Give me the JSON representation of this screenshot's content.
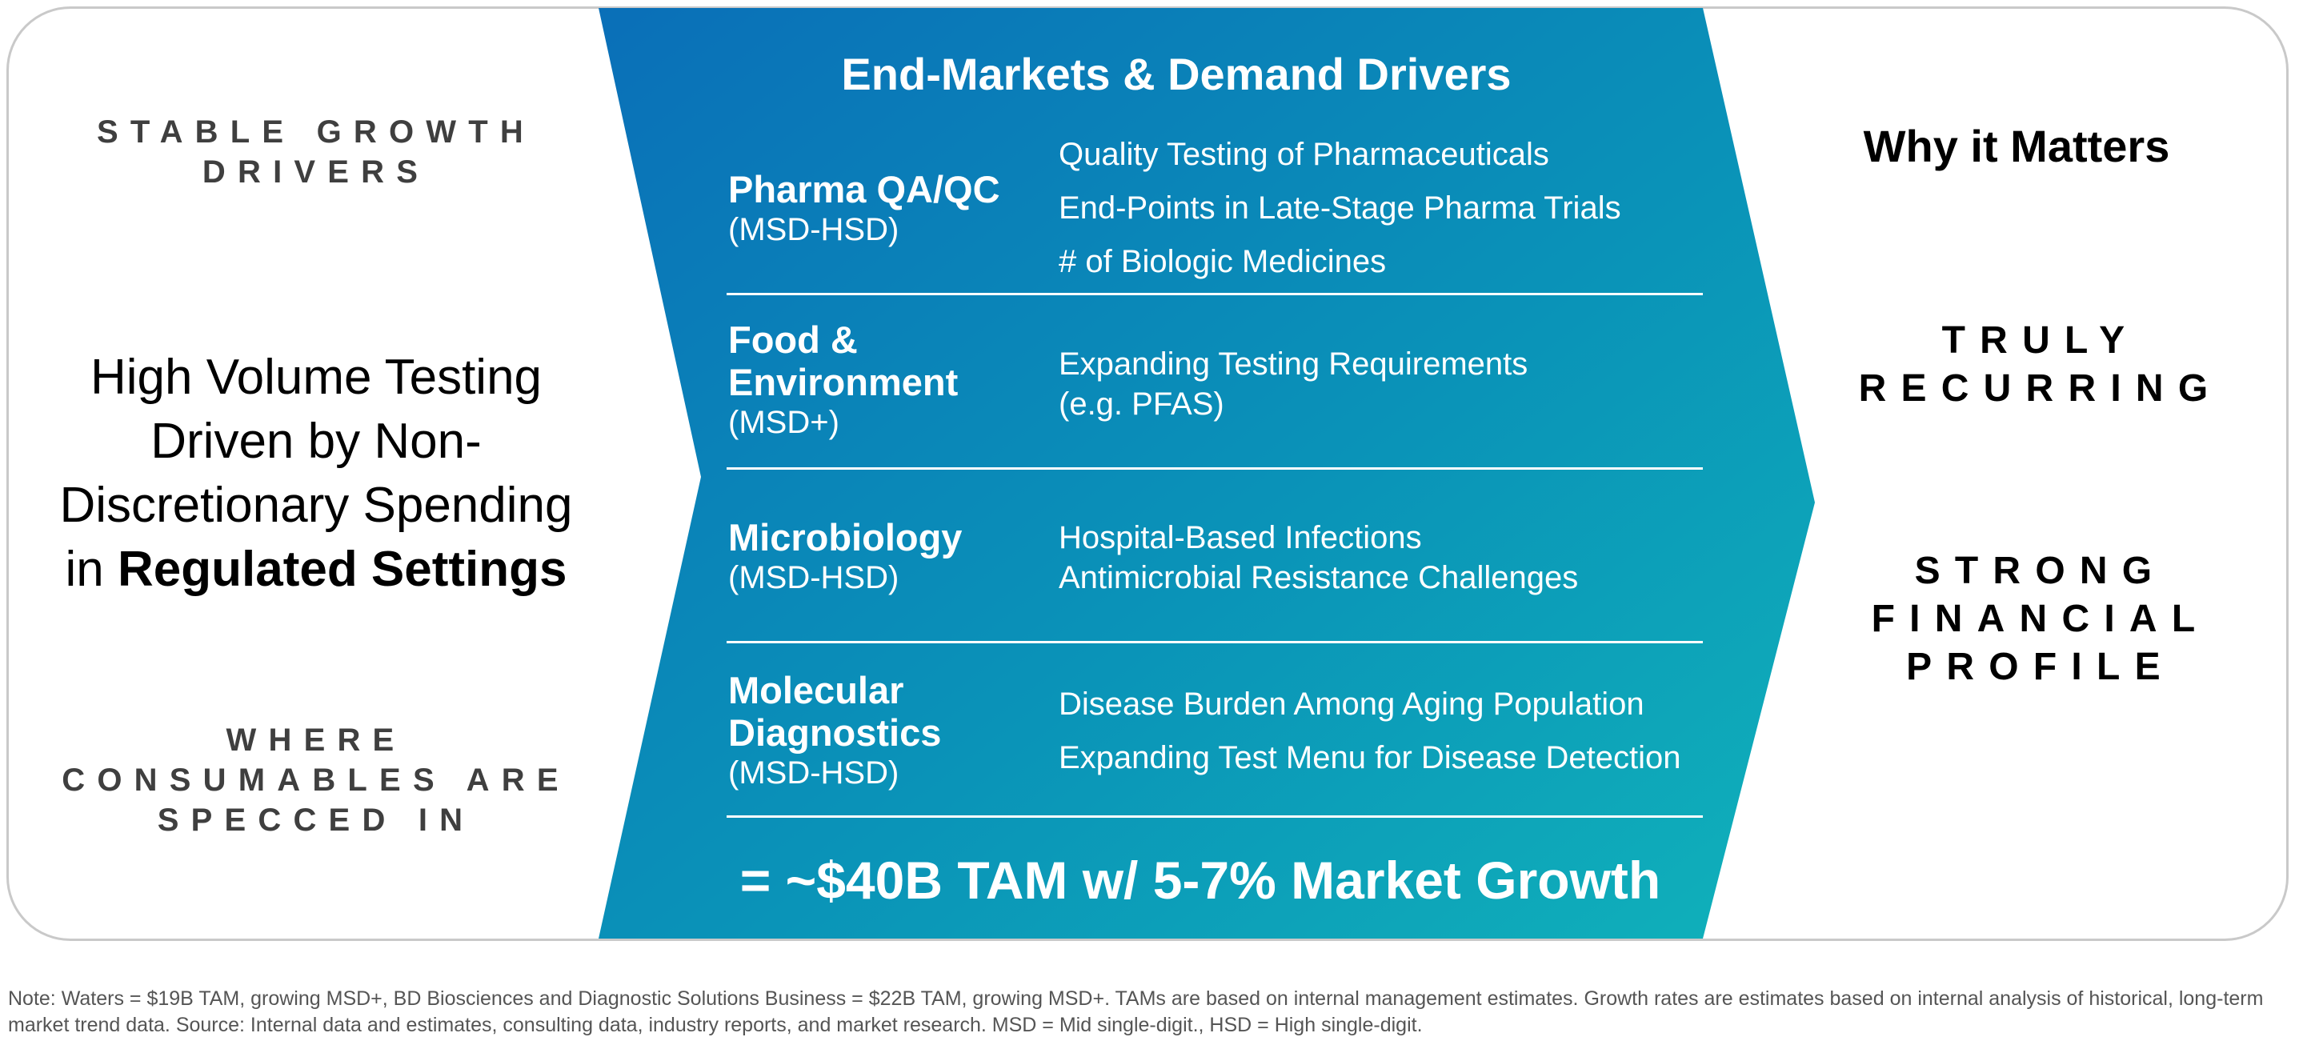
{
  "left": {
    "top_heading_lines": [
      "STABLE GROWTH",
      "DRIVERS"
    ],
    "main_text_lines": [
      "High Volume Testing",
      "Driven by Non-",
      "Discretionary Spending"
    ],
    "main_text_last_prefix": "in ",
    "main_text_last_bold": "Regulated Settings",
    "bottom_heading_lines": [
      "WHERE",
      "CONSUMABLES ARE",
      "SPECCED IN"
    ]
  },
  "center": {
    "title": "End-Markets & Demand Drivers",
    "categories": [
      {
        "name_lines": [
          "Pharma QA/QC"
        ],
        "growth": "(MSD-HSD)",
        "drivers": [
          "Quality Testing of Pharmaceuticals",
          "End-Points in Late-Stage Pharma Trials",
          "# of Biologic Medicines"
        ]
      },
      {
        "name_lines": [
          "Food &",
          "Environment"
        ],
        "growth": "(MSD+)",
        "drivers": [
          "Expanding Testing Requirements",
          "(e.g. PFAS)"
        ]
      },
      {
        "name_lines": [
          "Microbiology"
        ],
        "growth": "(MSD-HSD)",
        "drivers": [
          "Hospital-Based Infections",
          "Antimicrobial Resistance Challenges"
        ]
      },
      {
        "name_lines": [
          "Molecular",
          "Diagnostics"
        ],
        "growth": "(MSD-HSD)",
        "drivers": [
          "Disease Burden Among Aging Population",
          "Expanding Test Menu for Disease Detection"
        ]
      }
    ],
    "tam_summary": "=  ~$40B TAM w/ 5-7% Market Growth"
  },
  "right": {
    "title": "Why it Matters",
    "heading1_lines": [
      "TRULY",
      "RECURRING"
    ],
    "heading2_lines": [
      "STRONG",
      "FINANCIAL",
      "PROFILE"
    ]
  },
  "footnote_lines": [
    "Note: Waters = $19B TAM, growing MSD+, BD Biosciences and Diagnostic Solutions Business = $22B TAM, growing MSD+. TAMs are based on internal management estimates. Growth rates are estimates based on internal analysis of historical, long-term",
    "market trend data. Source: Internal data and estimates, consulting data, industry reports, and market research. MSD = Mid single-digit., HSD = High single-digit."
  ],
  "colors": {
    "panel_gradient_start": "#0a6fb8",
    "panel_gradient_end": "#0fb0b8",
    "frame_border": "#c9c9c9",
    "heading_gray": "#3f3f3f",
    "footnote_gray": "#555555"
  }
}
